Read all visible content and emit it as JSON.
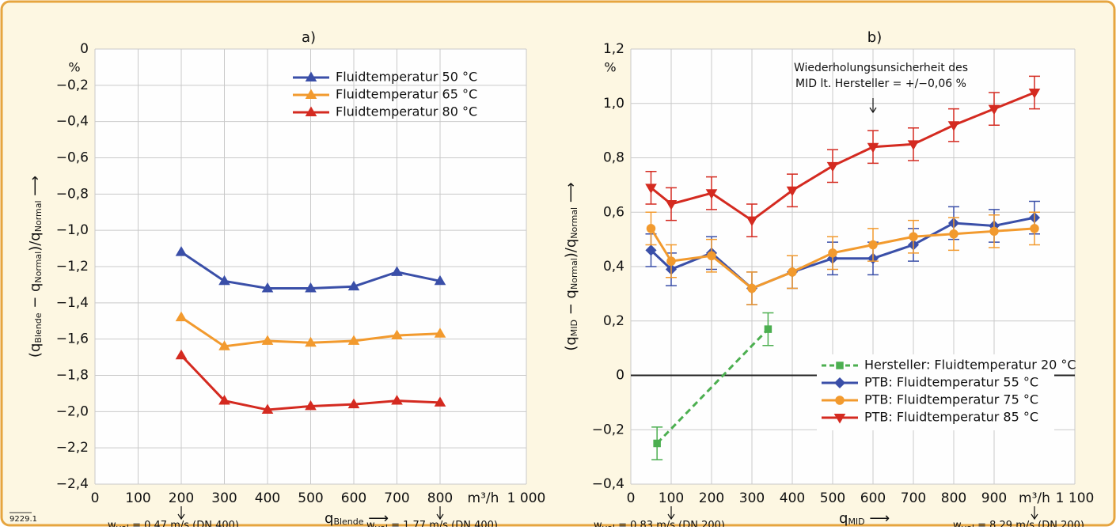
{
  "chart_data": [
    {
      "type": "line",
      "title": "a)",
      "xlim": [
        0,
        1000
      ],
      "ylim": [
        -2.4,
        0
      ],
      "xticks": [
        0,
        100,
        200,
        300,
        400,
        500,
        600,
        700,
        800,
        {
          "value": 1000,
          "label": "1 000"
        }
      ],
      "yticks": [
        0,
        {
          "value": -0.2,
          "label": "−0,2"
        },
        {
          "value": -0.4,
          "label": "−0,4"
        },
        {
          "value": -0.6,
          "label": "−0,6"
        },
        {
          "value": -0.8,
          "label": "−0,8"
        },
        {
          "value": -1.0,
          "label": "−1,0"
        },
        {
          "value": -1.2,
          "label": "−1,2"
        },
        {
          "value": -1.4,
          "label": "−1,4"
        },
        {
          "value": -1.6,
          "label": "−1,6"
        },
        {
          "value": -1.8,
          "label": "−1,8"
        },
        {
          "value": -2.0,
          "label": "−2,0"
        },
        {
          "value": -2.2,
          "label": "−2,2"
        },
        {
          "value": -2.4,
          "label": "−2,4"
        }
      ],
      "x_unit": "m³/h",
      "y_unit": "%",
      "x_label": [
        "q",
        "Blende",
        " ⟶"
      ],
      "y_label": [
        "(q",
        "Blende",
        " − q",
        "Normal",
        ")/q",
        "Normal",
        " ⟶"
      ],
      "x_notes": [
        [
          "w",
          "vol",
          " = 0,47 m/s (DN 400)"
        ],
        [
          "w",
          "vol",
          " = 1,77 m/s (DN 400)"
        ]
      ],
      "grid": true,
      "legend": "upper center",
      "series": [
        {
          "name": "Fluidtemperatur 50 °C",
          "color": "#3a4fa8",
          "marker": "triangle",
          "x": [
            200,
            300,
            400,
            500,
            600,
            700,
            800
          ],
          "values": [
            -1.12,
            -1.28,
            -1.32,
            -1.32,
            -1.31,
            -1.23,
            -1.28
          ]
        },
        {
          "name": "Fluidtemperatur 65 °C",
          "color": "#f29a2e",
          "marker": "triangle",
          "x": [
            200,
            300,
            400,
            500,
            600,
            700,
            800
          ],
          "values": [
            -1.48,
            -1.64,
            -1.61,
            -1.62,
            -1.61,
            -1.58,
            -1.57
          ]
        },
        {
          "name": "Fluidtemperatur 80 °C",
          "color": "#d42a20",
          "marker": "triangle",
          "x": [
            200,
            300,
            400,
            500,
            600,
            700,
            800
          ],
          "values": [
            -1.69,
            -1.94,
            -1.99,
            -1.97,
            -1.96,
            -1.94,
            -1.95
          ]
        }
      ]
    },
    {
      "type": "line",
      "title": "b)",
      "xlim": [
        0,
        1100
      ],
      "ylim": [
        -0.4,
        1.2
      ],
      "xticks": [
        0,
        100,
        200,
        300,
        400,
        500,
        600,
        700,
        800,
        900,
        {
          "value": 1100,
          "label": "1 100"
        }
      ],
      "yticks": [
        {
          "value": -0.4,
          "label": "−0,4"
        },
        {
          "value": -0.2,
          "label": "−0,2"
        },
        0,
        {
          "value": 0.2,
          "label": "0,2"
        },
        {
          "value": 0.4,
          "label": "0,4"
        },
        {
          "value": 0.6,
          "label": "0,6"
        },
        {
          "value": 0.8,
          "label": "0,8"
        },
        {
          "value": 1.0,
          "label": "1,0"
        },
        {
          "value": 1.2,
          "label": "1,2"
        }
      ],
      "x_unit": "m³/h",
      "y_unit": "%",
      "x_label": [
        "q",
        "MID",
        " ⟶"
      ],
      "y_label": [
        "(q",
        "MID",
        " − q",
        "Normal",
        ")/q",
        "Normal",
        " ⟶"
      ],
      "x_notes": [
        [
          "w",
          "vol",
          " = 0,83 m/s (DN 200)"
        ],
        [
          "w",
          "vol",
          " = 8,29 m/s (DN 200)"
        ]
      ],
      "annotation": [
        "Wiederholungsunsicherheit des",
        "MID lt. Hersteller = +/−0,06 %"
      ],
      "grid": true,
      "legend": "lower right",
      "series": [
        {
          "name": "Hersteller: Fluidtemperatur 20 °C",
          "color": "#4caf50",
          "marker": "square",
          "dashed": true,
          "x": [
            65,
            340
          ],
          "values": [
            -0.25,
            0.17
          ],
          "errors": [
            0.06,
            0.06
          ]
        },
        {
          "name": "PTB: Fluidtemperatur 55 °C",
          "color": "#3a4fa8",
          "marker": "diamond",
          "x": [
            50,
            100,
            200,
            300,
            400,
            500,
            600,
            700,
            800,
            900,
            1000
          ],
          "values": [
            0.46,
            0.39,
            0.45,
            0.32,
            0.38,
            0.43,
            0.43,
            0.48,
            0.56,
            0.55,
            0.58
          ],
          "errors": [
            0.06,
            0.06,
            0.06,
            0.06,
            0.06,
            0.06,
            0.06,
            0.06,
            0.06,
            0.06,
            0.06
          ]
        },
        {
          "name": "PTB: Fluidtemperatur 75 °C",
          "color": "#f29a2e",
          "marker": "circle",
          "x": [
            50,
            100,
            200,
            300,
            400,
            500,
            600,
            700,
            800,
            900,
            1000
          ],
          "values": [
            0.54,
            0.42,
            0.44,
            0.32,
            0.38,
            0.45,
            0.48,
            0.51,
            0.52,
            0.53,
            0.54
          ],
          "errors": [
            0.06,
            0.06,
            0.06,
            0.06,
            0.06,
            0.06,
            0.06,
            0.06,
            0.06,
            0.06,
            0.06
          ]
        },
        {
          "name": "PTB: Fluidtemperatur 85 °C",
          "color": "#d42a20",
          "marker": "down-triangle",
          "x": [
            50,
            100,
            200,
            300,
            400,
            500,
            600,
            700,
            800,
            900,
            1000
          ],
          "values": [
            0.69,
            0.63,
            0.67,
            0.57,
            0.68,
            0.77,
            0.84,
            0.85,
            0.92,
            0.98,
            1.04
          ],
          "errors": [
            0.06,
            0.06,
            0.06,
            0.06,
            0.06,
            0.06,
            0.06,
            0.06,
            0.06,
            0.06,
            0.06
          ]
        }
      ]
    }
  ],
  "figure_id": "9229.1"
}
